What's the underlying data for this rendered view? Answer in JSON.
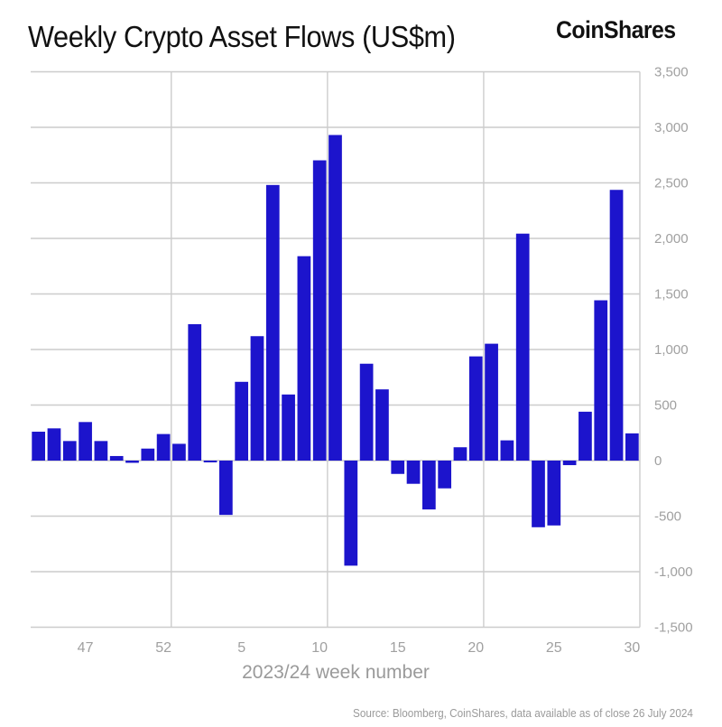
{
  "header": {
    "title": "Weekly Crypto Asset Flows (US$m)",
    "brand": "CoinShares"
  },
  "footer": {
    "source": "Source: Bloomberg, CoinShares, data available as of close 26 July 2024"
  },
  "colors": {
    "bar": "#1c14cc",
    "grid": "#cccccc",
    "axis_text": "#a0a0a0"
  },
  "chart_data": {
    "type": "bar",
    "title": "Weekly Crypto Asset Flows (US$m)",
    "xlabel": "2023/24 week number",
    "ylabel": "",
    "ylim": [
      -1500,
      3500
    ],
    "yticks": [
      3500,
      3000,
      2500,
      2000,
      1500,
      1000,
      500,
      0,
      -500,
      -1000,
      -1500
    ],
    "ytick_labels": [
      "3,500",
      "3,000",
      "2,500",
      "2,000",
      "1,500",
      "1,000",
      "500",
      "0",
      "-500",
      "-1,000",
      "-1,500"
    ],
    "xtick_labels": [
      {
        "week": 47,
        "label": "47"
      },
      {
        "week": 52,
        "label": "52"
      },
      {
        "week": 5,
        "label": "5"
      },
      {
        "week": 10,
        "label": "10"
      },
      {
        "week": 15,
        "label": "15"
      },
      {
        "week": 20,
        "label": "20"
      },
      {
        "week": 25,
        "label": "25"
      },
      {
        "week": 30,
        "label": "30"
      }
    ],
    "vertical_grid_after_weeks": [
      52,
      10,
      20
    ],
    "grid": true,
    "y_axis_side": "right",
    "categories": [
      44,
      45,
      46,
      47,
      48,
      49,
      50,
      51,
      52,
      1,
      2,
      3,
      4,
      5,
      6,
      7,
      8,
      9,
      10,
      11,
      12,
      13,
      14,
      15,
      16,
      17,
      18,
      19,
      20,
      21,
      22,
      23,
      24,
      25,
      26,
      27,
      28,
      29,
      30
    ],
    "values": [
      260,
      290,
      176,
      347,
      176,
      41,
      -20,
      108,
      239,
      151,
      1228,
      -16,
      -489,
      709,
      1120,
      2481,
      595,
      1840,
      2703,
      2931,
      -946,
      872,
      641,
      -120,
      -209,
      -440,
      -250,
      120,
      938,
      1052,
      182,
      2043,
      -600,
      -584,
      -41,
      440,
      1443,
      2437,
      245
    ]
  }
}
